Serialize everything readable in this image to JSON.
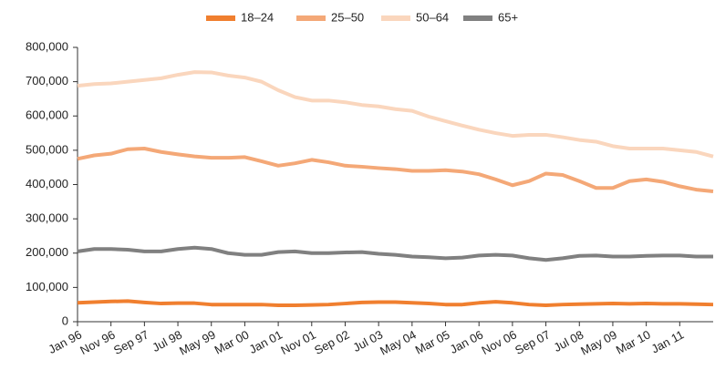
{
  "chart_data": {
    "type": "line",
    "categories": [
      "Jan 96",
      null,
      "Nov 96",
      null,
      "Sep 97",
      null,
      "Jul 98",
      null,
      "May 99",
      null,
      "Mar 00",
      null,
      "Jan 01",
      null,
      "Nov 01",
      null,
      "Sep 02",
      null,
      "Jul 03",
      null,
      "May 04",
      null,
      "Mar 05",
      null,
      "Jan 06",
      null,
      "Nov 06",
      null,
      "Sep 07",
      null,
      "Jul 08",
      null,
      "May 09",
      null,
      "Mar 10",
      null,
      "Jan 11",
      null,
      null
    ],
    "series": [
      {
        "name": "18–24",
        "color": "#f07f2f",
        "values": [
          55000,
          57000,
          59000,
          60000,
          56000,
          53000,
          54000,
          54000,
          50000,
          50000,
          50000,
          50000,
          48000,
          48000,
          49000,
          50000,
          53000,
          56000,
          57000,
          57000,
          55000,
          53000,
          50000,
          50000,
          55000,
          58000,
          55000,
          50000,
          48000,
          50000,
          51000,
          52000,
          53000,
          52000,
          53000,
          52000,
          52000,
          51000,
          50000
        ]
      },
      {
        "name": "25–50",
        "color": "#f4a877",
        "values": [
          475000,
          485000,
          490000,
          503000,
          505000,
          495000,
          488000,
          482000,
          478000,
          478000,
          480000,
          468000,
          455000,
          462000,
          472000,
          465000,
          455000,
          452000,
          448000,
          445000,
          440000,
          440000,
          442000,
          438000,
          430000,
          415000,
          398000,
          410000,
          432000,
          428000,
          410000,
          390000,
          390000,
          410000,
          415000,
          408000,
          395000,
          385000,
          380000
        ]
      },
      {
        "name": "50–64",
        "color": "#fad6bd",
        "values": [
          688000,
          693000,
          695000,
          700000,
          705000,
          710000,
          720000,
          728000,
          727000,
          718000,
          712000,
          700000,
          675000,
          655000,
          645000,
          645000,
          640000,
          632000,
          628000,
          620000,
          615000,
          598000,
          585000,
          572000,
          560000,
          550000,
          542000,
          545000,
          545000,
          538000,
          530000,
          525000,
          512000,
          505000,
          505000,
          505000,
          500000,
          495000,
          482000
        ]
      },
      {
        "name": "65+",
        "color": "#808080",
        "values": [
          205000,
          212000,
          212000,
          210000,
          205000,
          205000,
          212000,
          216000,
          212000,
          200000,
          195000,
          195000,
          203000,
          205000,
          200000,
          200000,
          202000,
          203000,
          198000,
          195000,
          190000,
          188000,
          185000,
          187000,
          193000,
          195000,
          193000,
          185000,
          180000,
          185000,
          192000,
          193000,
          190000,
          190000,
          192000,
          193000,
          193000,
          190000,
          190000
        ]
      }
    ],
    "ylim": [
      0,
      800000
    ],
    "yticks": [
      0,
      {
        "value": 100000,
        "label": "100,000"
      },
      {
        "value": 200000,
        "label": "200,000"
      },
      {
        "value": 300000,
        "label": "300,000"
      },
      {
        "value": 400000,
        "label": "400,000"
      },
      {
        "value": 500000,
        "label": "500,000"
      },
      {
        "value": 600000,
        "label": "600,000"
      },
      {
        "value": 700000,
        "label": "700,000"
      },
      {
        "value": 800000,
        "label": "800,000"
      }
    ],
    "legend": "top",
    "grid": false
  }
}
